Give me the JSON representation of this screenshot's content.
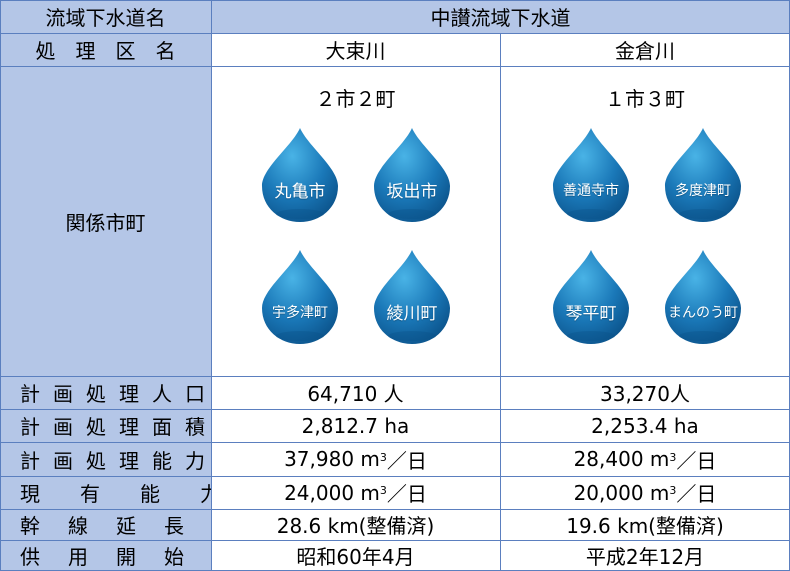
{
  "headers": {
    "col_label": "流域下水道名",
    "system": "中讃流域下水道",
    "district_label": "処　理　区　名",
    "district_a": "大束川",
    "district_b": "金倉川",
    "municipalities_label": "関係市町"
  },
  "district_a": {
    "summary": "２市２町",
    "towns": [
      "丸亀市",
      "坂出市",
      "宇多津町",
      "綾川町"
    ]
  },
  "district_b": {
    "summary": "１市３町",
    "towns": [
      "善通寺市",
      "多度津町",
      "琴平町",
      "まんのう町"
    ]
  },
  "rows": [
    {
      "label": "計画処理人口",
      "a": "64,710 人",
      "b": "33,270人"
    },
    {
      "label": "計画処理面積",
      "a": "2,812.7 ha",
      "b": "2,253.4 ha"
    },
    {
      "label": "計画処理能力",
      "a_num": "37,980 m",
      "a_sup": "3",
      "a_unit": "／日",
      "b_num": "28,400 m",
      "b_sup": "3",
      "b_unit": "／日"
    },
    {
      "label": "現有能力",
      "a_num": "24,000 m",
      "a_sup": "3",
      "a_unit": "／日",
      "b_num": "20,000 m",
      "b_sup": "3",
      "b_unit": "／日"
    },
    {
      "label": "幹線延長",
      "a": "28.6 km(整備済)",
      "b": "19.6 km(整備済)"
    },
    {
      "label": "供用開始",
      "a": "昭和60年4月",
      "b": "平成2年12月"
    }
  ],
  "colors": {
    "header_bg": "#b4c6e7",
    "grid": "#5b7fbf",
    "drop_top": "#49b3e6",
    "drop_bottom": "#0a4f86"
  }
}
